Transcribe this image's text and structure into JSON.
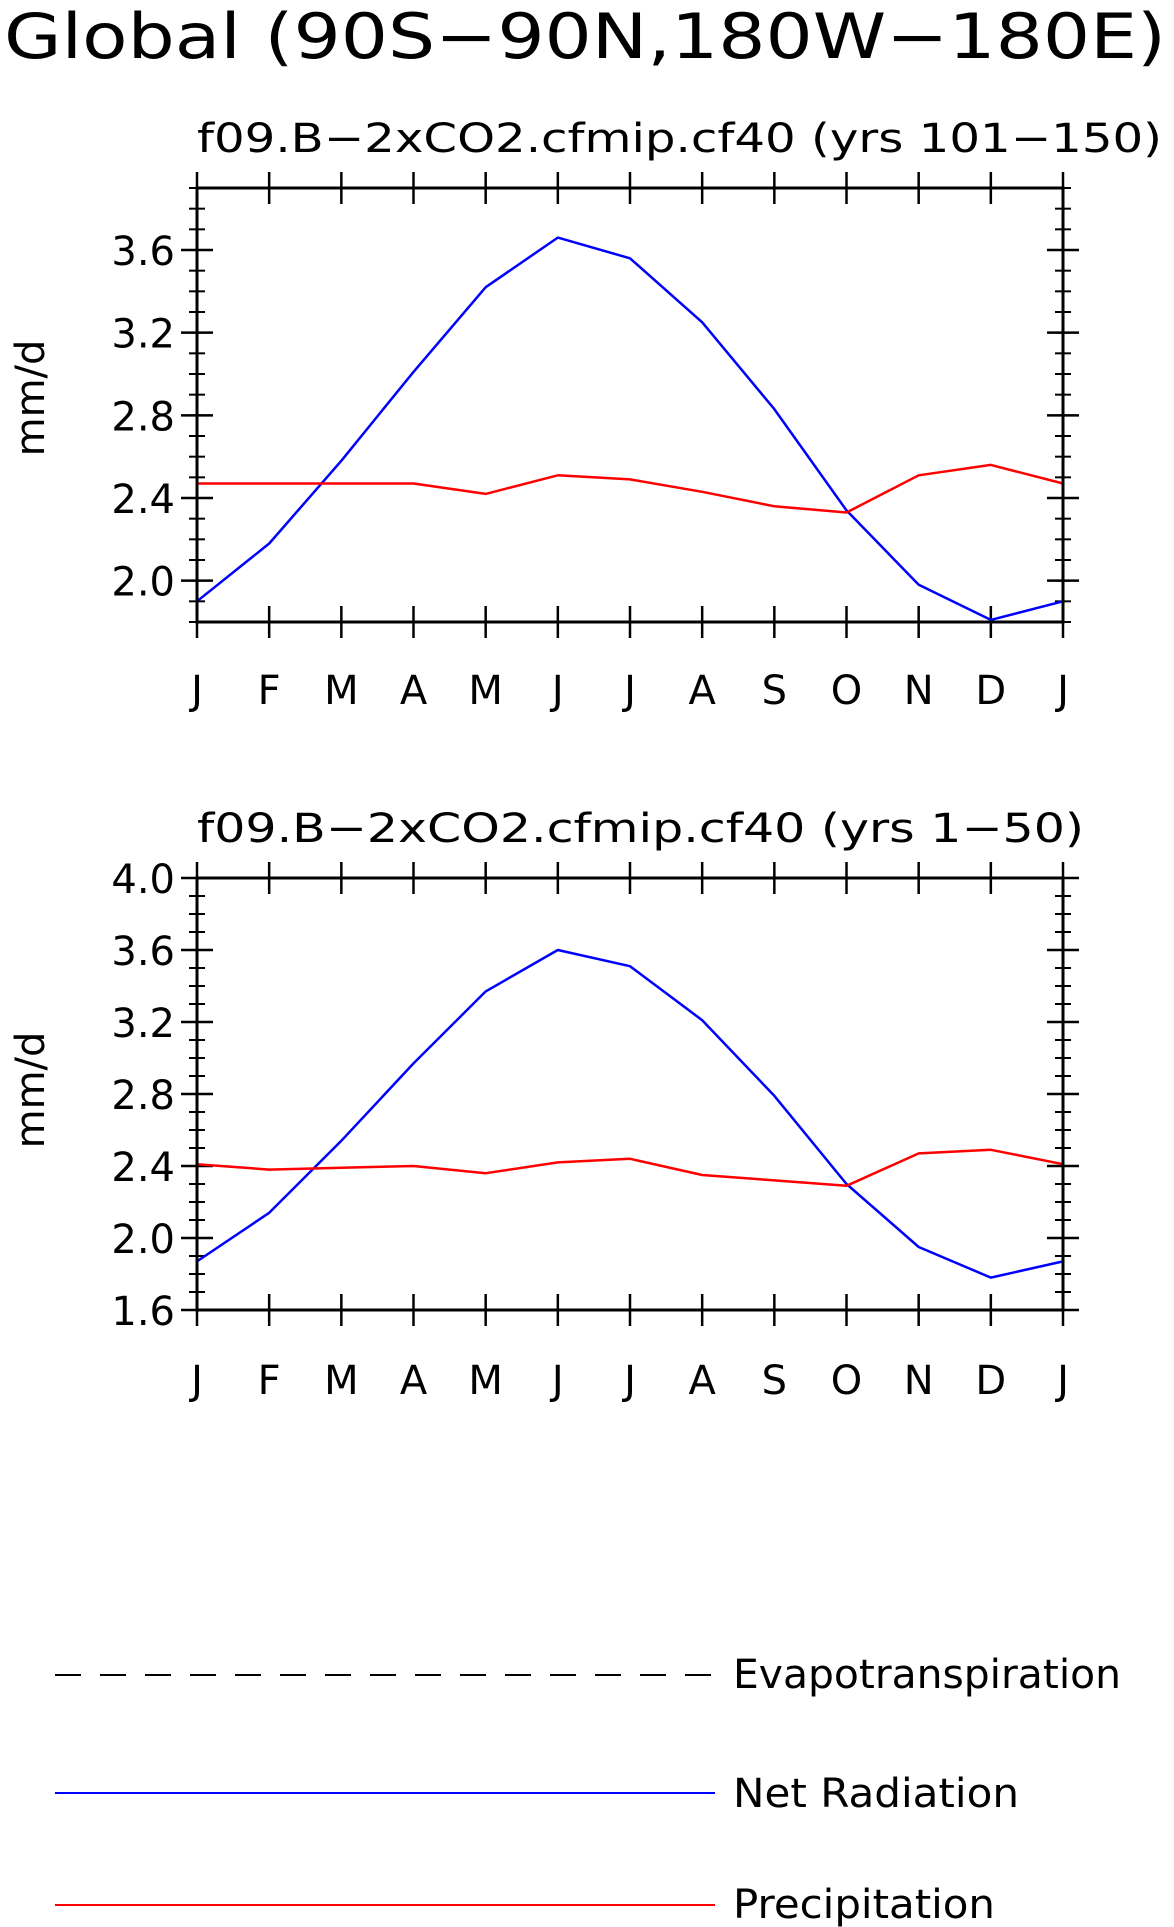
{
  "page_title": "Global (90S−90N,180W−180E)",
  "chart_data": [
    {
      "type": "line",
      "title": "f09.B−2xCO2.cfmip.cf40 (yrs 101−150)",
      "ylabel": "mm/d",
      "xlabel": "",
      "categories": [
        "J",
        "F",
        "M",
        "A",
        "M",
        "J",
        "J",
        "A",
        "S",
        "O",
        "N",
        "D",
        "J"
      ],
      "ylim": [
        1.8,
        3.9
      ],
      "yticks": [
        "2.0",
        "2.4",
        "2.8",
        "3.2",
        "3.6"
      ],
      "series": [
        {
          "name": "Net Radiation",
          "color": "#0000ff",
          "values": [
            1.9,
            2.18,
            2.58,
            3.01,
            3.42,
            3.66,
            3.56,
            3.25,
            2.83,
            2.34,
            1.98,
            1.81,
            1.9
          ]
        },
        {
          "name": "Precipitation",
          "color": "#ff0000",
          "values": [
            2.47,
            2.47,
            2.47,
            2.47,
            2.42,
            2.51,
            2.49,
            2.43,
            2.36,
            2.33,
            2.51,
            2.56,
            2.47
          ]
        }
      ]
    },
    {
      "type": "line",
      "title": "f09.B−2xCO2.cfmip.cf40 (yrs 1−50)",
      "ylabel": "mm/d",
      "xlabel": "",
      "categories": [
        "J",
        "F",
        "M",
        "A",
        "M",
        "J",
        "J",
        "A",
        "S",
        "O",
        "N",
        "D",
        "J"
      ],
      "ylim": [
        1.6,
        4.0
      ],
      "yticks": [
        "1.6",
        "2.0",
        "2.4",
        "2.8",
        "3.2",
        "3.6",
        "4.0"
      ],
      "series": [
        {
          "name": "Net Radiation",
          "color": "#0000ff",
          "values": [
            1.87,
            2.14,
            2.54,
            2.97,
            3.37,
            3.6,
            3.51,
            3.21,
            2.79,
            2.3,
            1.95,
            1.78,
            1.87
          ]
        },
        {
          "name": "Precipitation",
          "color": "#ff0000",
          "values": [
            2.41,
            2.38,
            2.39,
            2.4,
            2.36,
            2.42,
            2.44,
            2.35,
            2.32,
            2.29,
            2.47,
            2.49,
            2.41
          ]
        }
      ]
    }
  ],
  "legend": [
    {
      "label": "Evapotranspiration",
      "color": "#000000",
      "style": "dashed"
    },
    {
      "label": "Net Radiation",
      "color": "#0000ff",
      "style": "solid"
    },
    {
      "label": "Precipitation",
      "color": "#ff0000",
      "style": "solid"
    }
  ]
}
